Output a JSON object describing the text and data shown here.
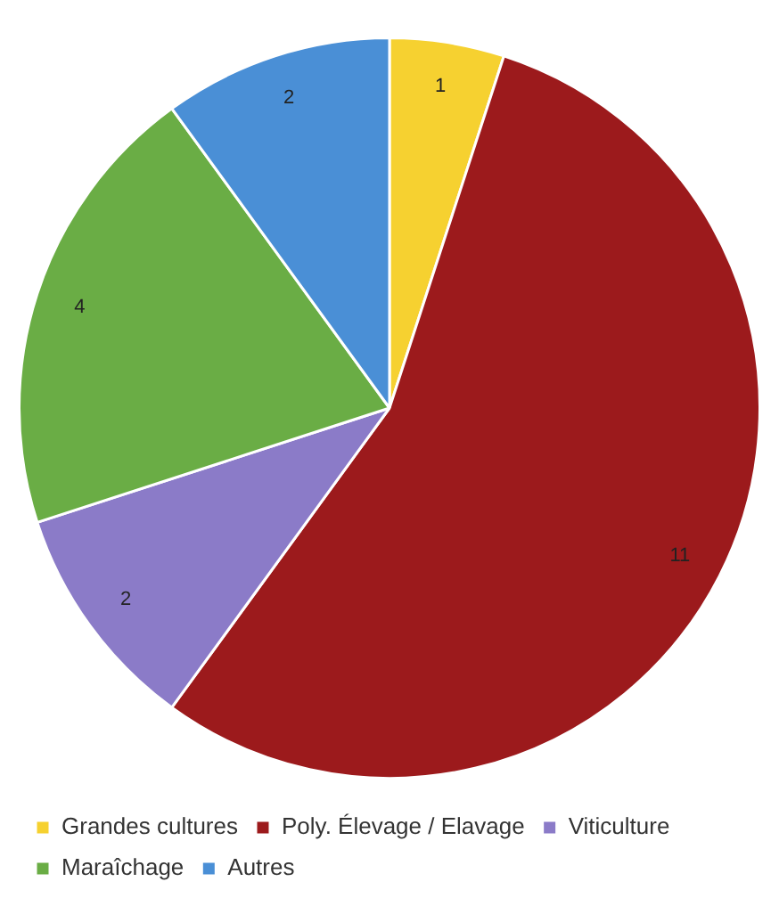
{
  "chart_data": {
    "type": "pie",
    "categories": [
      "Grandes cultures",
      "Poly. Élevage / Elavage",
      "Viticulture",
      "Maraîchage",
      "Autres"
    ],
    "values": [
      1,
      11,
      2,
      4,
      2
    ],
    "colors": [
      "#f6d130",
      "#9c1a1c",
      "#8b7bc8",
      "#6aad45",
      "#4a8fd6"
    ],
    "data_labels": true,
    "legend": "bottom"
  }
}
